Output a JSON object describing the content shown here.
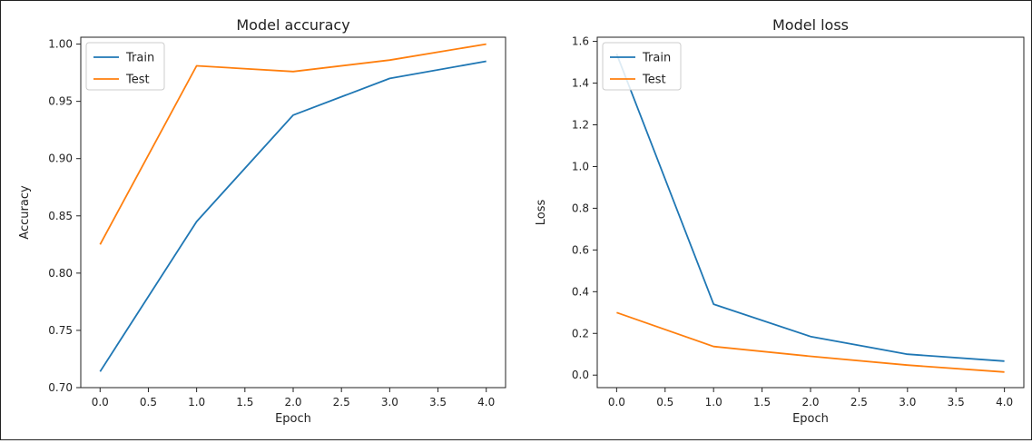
{
  "chart_data": [
    {
      "type": "line",
      "title": "Model accuracy",
      "xlabel": "Epoch",
      "ylabel": "Accuracy",
      "x": [
        0,
        1,
        2,
        3,
        4
      ],
      "xlim": [
        -0.2,
        4.2
      ],
      "ylim": [
        0.7,
        1.006
      ],
      "xticks": [
        "0.0",
        "0.5",
        "1.0",
        "1.5",
        "2.0",
        "2.5",
        "3.0",
        "3.5",
        "4.0"
      ],
      "yticks": [
        "0.70",
        "0.75",
        "0.80",
        "0.85",
        "0.90",
        "0.95",
        "1.00"
      ],
      "grid": false,
      "legend_position": "top-left",
      "series": [
        {
          "name": "Train",
          "color": "#1f77b4",
          "values": [
            0.714,
            0.845,
            0.938,
            0.97,
            0.985
          ]
        },
        {
          "name": "Test",
          "color": "#ff7f0e",
          "values": [
            0.825,
            0.981,
            0.976,
            0.986,
            1.0
          ]
        }
      ]
    },
    {
      "type": "line",
      "title": "Model loss",
      "xlabel": "Epoch",
      "ylabel": "Loss",
      "x": [
        0,
        1,
        2,
        3,
        4
      ],
      "xlim": [
        -0.2,
        4.2
      ],
      "ylim": [
        -0.06,
        1.62
      ],
      "xticks": [
        "0.0",
        "0.5",
        "1.0",
        "1.5",
        "2.0",
        "2.5",
        "3.0",
        "3.5",
        "4.0"
      ],
      "yticks": [
        "0.0",
        "0.2",
        "0.4",
        "0.6",
        "0.8",
        "1.0",
        "1.2",
        "1.4",
        "1.6"
      ],
      "grid": false,
      "legend_position": "top-left",
      "series": [
        {
          "name": "Train",
          "color": "#1f77b4",
          "values": [
            1.54,
            0.34,
            0.185,
            0.1,
            0.067
          ]
        },
        {
          "name": "Test",
          "color": "#ff7f0e",
          "values": [
            0.3,
            0.137,
            0.09,
            0.048,
            0.015
          ]
        }
      ]
    }
  ]
}
